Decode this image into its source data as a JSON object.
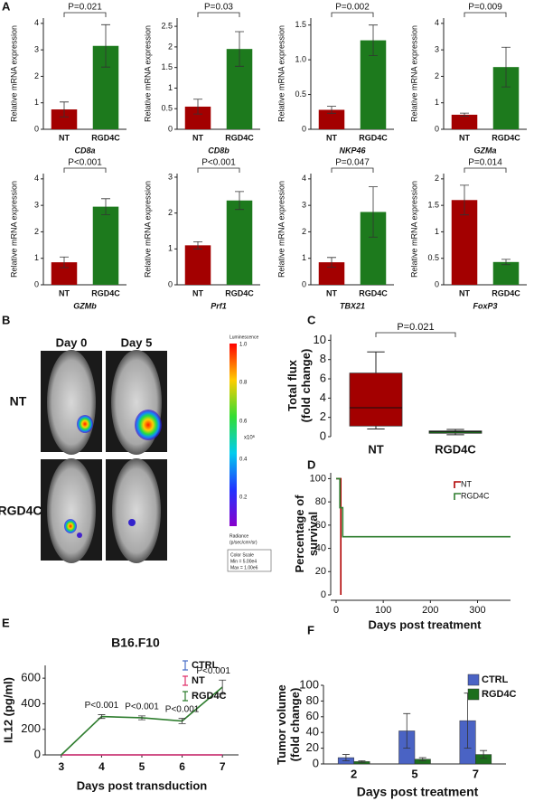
{
  "panel_labels": [
    "A",
    "B",
    "C",
    "D",
    "E",
    "F"
  ],
  "imaging": {
    "columns": [
      "Day 0",
      "Day 5"
    ],
    "rows": [
      "NT",
      "RGD4C"
    ],
    "colorbar": {
      "title": "Luminescence",
      "ticks": [
        "1.0",
        "0.8",
        "0.6",
        "0.4",
        "0.2"
      ],
      "unit": "x10⁶",
      "radiance": [
        "Radiance",
        "(p/sec/cm²/sr)"
      ],
      "scale": [
        "Color Scale",
        "Min = 5.00e4",
        "Max = 1.00e6"
      ]
    }
  },
  "chart_data": [
    {
      "type": "bar",
      "categories": [
        "NT",
        "RGD4C"
      ],
      "values": [
        0.75,
        3.15
      ],
      "errors": [
        0.28,
        0.8
      ],
      "colors": [
        "#a30000",
        "#1d7a1d"
      ],
      "ylim": [
        0,
        4.2
      ],
      "yticks": [
        0,
        1,
        2,
        3,
        4
      ],
      "ylabel": [
        "Relative mRNA expression"
      ],
      "xlabel": "CD8a",
      "annotation": "P=0.021"
    },
    {
      "type": "bar",
      "categories": [
        "NT",
        "RGD4C"
      ],
      "values": [
        0.55,
        1.95
      ],
      "errors": [
        0.18,
        0.42
      ],
      "colors": [
        "#a30000",
        "#1d7a1d"
      ],
      "ylim": [
        0,
        2.7
      ],
      "yticks": [
        0,
        0.5,
        1,
        1.5,
        2,
        2.5
      ],
      "ylabel": [
        "Relative mRNA expression"
      ],
      "xlabel": "CD8b",
      "annotation": "P=0.03"
    },
    {
      "type": "bar",
      "categories": [
        "NT",
        "RGD4C"
      ],
      "values": [
        0.28,
        1.28
      ],
      "errors": [
        0.05,
        0.22
      ],
      "colors": [
        "#a30000",
        "#1d7a1d"
      ],
      "ylim": [
        0,
        1.6
      ],
      "yticks": [
        0,
        0.5,
        {
          "value": 1,
          "label": "1.0"
        },
        1.5
      ],
      "ylabel": [
        "Relative mRNA expression"
      ],
      "xlabel": "NKP46",
      "annotation": "P=0.002"
    },
    {
      "type": "bar",
      "categories": [
        "NT",
        "RGD4C"
      ],
      "values": [
        0.55,
        2.35
      ],
      "errors": [
        0.06,
        0.75
      ],
      "colors": [
        "#a30000",
        "#1d7a1d"
      ],
      "ylim": [
        0,
        4.2
      ],
      "yticks": [
        0,
        1,
        2,
        3,
        4
      ],
      "ylabel": [
        "Relative mRNA expression"
      ],
      "xlabel": "GZMa",
      "annotation": "P=0.009"
    },
    {
      "type": "bar",
      "categories": [
        "NT",
        "RGD4C"
      ],
      "values": [
        0.85,
        2.95
      ],
      "errors": [
        0.2,
        0.3
      ],
      "colors": [
        "#a30000",
        "#1d7a1d"
      ],
      "ylim": [
        0,
        4.2
      ],
      "yticks": [
        0,
        1,
        2,
        3,
        4
      ],
      "ylabel": [
        "Relative mRNA expression"
      ],
      "xlabel": "GZMb",
      "annotation": "P<0.001"
    },
    {
      "type": "bar",
      "categories": [
        "NT",
        "RGD4C"
      ],
      "values": [
        1.1,
        2.35
      ],
      "errors": [
        0.1,
        0.25
      ],
      "colors": [
        "#a30000",
        "#1d7a1d"
      ],
      "ylim": [
        0,
        3.1
      ],
      "yticks": [
        0,
        1,
        2,
        3
      ],
      "ylabel": [
        "Relative mRNA expression"
      ],
      "xlabel": "Prf1",
      "annotation": "P<0.001"
    },
    {
      "type": "bar",
      "categories": [
        "NT",
        "RGD4C"
      ],
      "values": [
        0.85,
        2.75
      ],
      "errors": [
        0.18,
        0.95
      ],
      "colors": [
        "#a30000",
        "#1d7a1d"
      ],
      "ylim": [
        0,
        4.2
      ],
      "yticks": [
        0,
        1,
        2,
        3,
        4
      ],
      "ylabel": [
        "Relative mRNA expression"
      ],
      "xlabel": "TBX21",
      "annotation": "P=0.047"
    },
    {
      "type": "bar",
      "categories": [
        "NT",
        "RGD4C"
      ],
      "values": [
        1.6,
        0.43
      ],
      "errors": [
        0.28,
        0.05
      ],
      "colors": [
        "#a30000",
        "#1d7a1d"
      ],
      "ylim": [
        0,
        2.1
      ],
      "yticks": [
        0,
        0.5,
        1,
        1.5,
        2
      ],
      "ylabel": [
        "Relative mRNA expression"
      ],
      "xlabel": "FoxP3",
      "annotation": "P=0.014"
    },
    {
      "type": "box",
      "categories": [
        "NT",
        "RGD4C"
      ],
      "colors": [
        "#a30000",
        "#1d7a1d"
      ],
      "boxes": [
        {
          "min": 0.8,
          "q1": 1.1,
          "median": 3.0,
          "q3": 6.6,
          "max": 8.8
        },
        {
          "min": 0.2,
          "q1": 0.35,
          "median": 0.5,
          "q3": 0.6,
          "max": 0.75
        }
      ],
      "ylim": [
        0,
        10.6
      ],
      "yticks": [
        0,
        2,
        4,
        6,
        8,
        10
      ],
      "ylabel": [
        "Total flux",
        "(fold change)"
      ],
      "annotation": "P=0.021"
    },
    {
      "type": "step",
      "xlim": [
        0,
        370
      ],
      "xticks": [
        0,
        100,
        200,
        300
      ],
      "ylim": [
        0,
        105
      ],
      "yticks": [
        0,
        20,
        40,
        60,
        80,
        100
      ],
      "xlabel": "Days post treatment",
      "ylabel": [
        "Percentage of",
        "survival"
      ],
      "legend": "top-right",
      "series": [
        {
          "name": "NT",
          "color": "#b00000",
          "x": [
            0,
            10,
            10
          ],
          "values": [
            100,
            100,
            0
          ]
        },
        {
          "name": "RGD4C",
          "color": "#2e7d2e",
          "x": [
            0,
            8,
            8,
            14,
            14,
            370
          ],
          "values": [
            100,
            100,
            75,
            75,
            50,
            50
          ]
        }
      ]
    },
    {
      "type": "line",
      "title": "B16.F10",
      "x": [
        3,
        4,
        5,
        6,
        7
      ],
      "xlim": [
        2.6,
        7.4
      ],
      "xticks": [
        3,
        4,
        5,
        6,
        7
      ],
      "ylim": [
        0,
        700
      ],
      "yticks": [
        0,
        200,
        400,
        600
      ],
      "xlabel": "Days post transduction",
      "ylabel": [
        "IL12 (pg/ml)"
      ],
      "legend": "top-right",
      "annotations": [
        "P<0.001",
        "P<0.001",
        "P<0.001",
        "P<0.001"
      ],
      "series": [
        {
          "name": "CTRL",
          "color": "#4a6fc7",
          "values": [
            0,
            0,
            0,
            0,
            0
          ]
        },
        {
          "name": "NT",
          "color": "#e0306a",
          "values": [
            0,
            0,
            0,
            0,
            0
          ]
        },
        {
          "name": "RGD4C",
          "color": "#2e7d2e",
          "values": [
            0,
            300,
            290,
            265,
            530
          ],
          "errors": [
            null,
            15,
            15,
            20,
            55
          ]
        }
      ]
    },
    {
      "type": "groupbar",
      "categories": [
        "2",
        "5",
        "7"
      ],
      "ylim": [
        0,
        100
      ],
      "yticks": [
        0,
        20,
        40,
        60,
        80,
        100
      ],
      "xlabel": "Days post treatment",
      "ylabel": [
        "Tumor volume",
        "(fold change)"
      ],
      "legend": "top-right",
      "series": [
        {
          "name": "CTRL",
          "color": "#4a63c4",
          "values": [
            8,
            42,
            55
          ],
          "errors": [
            4,
            22,
            35
          ]
        },
        {
          "name": "RGD4C",
          "color": "#1d6e1d",
          "values": [
            3,
            6,
            12
          ],
          "errors": [
            1,
            2,
            5
          ]
        }
      ]
    }
  ]
}
